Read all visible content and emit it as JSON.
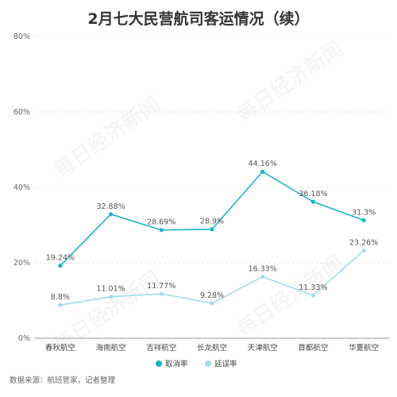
{
  "chart_data": {
    "type": "line",
    "title": "2月七大民营航司客运情况（续）",
    "categories": [
      "春秋航空",
      "海南航空",
      "吉祥航空",
      "长龙航空",
      "天津航空",
      "首都航空",
      "华夏航空"
    ],
    "series": [
      {
        "name": "取消率",
        "color": "#1bb3c8",
        "values": [
          19.24,
          32.88,
          28.69,
          28.9,
          44.16,
          36.18,
          31.3
        ],
        "labels": [
          "19.24%",
          "32.88%",
          "28.69%",
          "28.9%",
          "44.16%",
          "36.18%",
          "31.3%"
        ]
      },
      {
        "name": "延误率",
        "color": "#a3dcec",
        "values": [
          8.8,
          11.01,
          11.77,
          9.28,
          16.33,
          11.33,
          23.26
        ],
        "labels": [
          "8.8%",
          "11.01%",
          "11.77%",
          "9.28%",
          "16.33%",
          "11.33%",
          "23.26%"
        ]
      }
    ],
    "y_ticks": [
      "0%",
      "20%",
      "40%",
      "60%",
      "80%"
    ],
    "ylim": [
      0,
      80
    ],
    "grid": true,
    "legend_position": "bottom-center",
    "source": "数据来源：航班管家，记者整理",
    "watermark": "每日经济新闻"
  }
}
